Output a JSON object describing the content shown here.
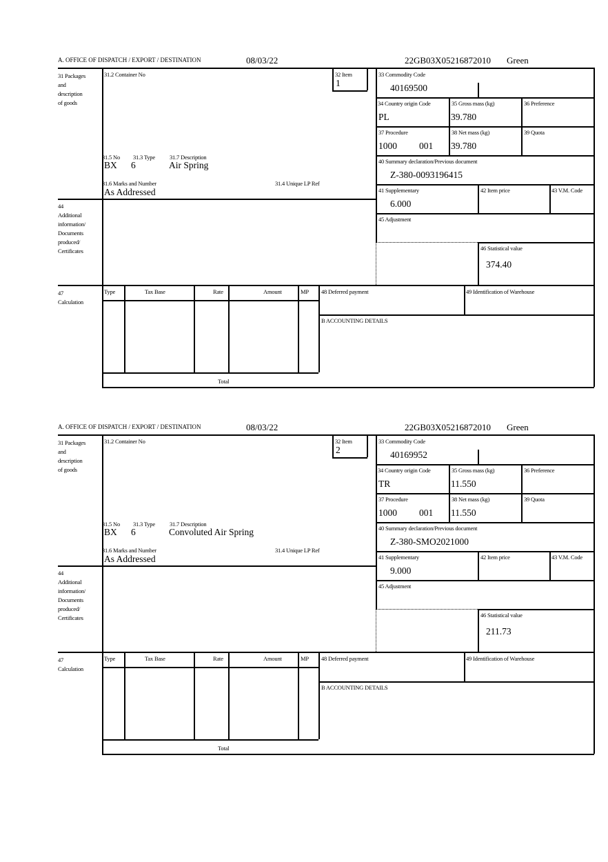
{
  "labels": {
    "office": "A.  OFFICE OF DISPATCH / EXPORT / DESTINATION",
    "packages": "31 Packages\nand\ndescription\nof goods",
    "container": "31.2 Container No",
    "item": "32 Item",
    "commodity": "33 Commodity Code",
    "origin": "34 Country origin Code",
    "gross": "35 Gross mass (kg)",
    "preference": "36 Preference",
    "procedure": "37 Procedure",
    "net": "38 Net mass (kg)",
    "quota": "39 Quota",
    "summary": "40 Summary declaration/Previous document",
    "supplementary": "41 Supplementary",
    "item_price": "42 Item price",
    "vm_code": "43 V.M. Code",
    "adjustment": "45 Adjustment",
    "statistical": "46 Statistical value",
    "no": "31.5 No",
    "type": "31.3 Type",
    "description": "31.7 Description",
    "marks": "31.6 Marks and Number",
    "unique_ref": "31.4 Unique LP Ref",
    "additional": "44\nAdditional\ninformation/\nDocuments\nproduced/\nCertificates",
    "calculation": "47\nCalculation",
    "col_type": "Type",
    "col_tax_base": "Tax Base",
    "col_rate": "Rate",
    "col_amount": "Amount",
    "col_mp": "MP",
    "deferred": "48 Deferred payment",
    "warehouse": "49 Identification of Warehouse",
    "accounting": "B ACCOUNTING DETAILS",
    "total": "Total"
  },
  "forms": [
    {
      "date": "08/03/22",
      "reference": "22GB03X05216872010",
      "route": "Green",
      "item": "1",
      "commodity_code": "40169500",
      "origin": "PL",
      "gross_mass": "39.780",
      "procedure": "1000",
      "procedure_add": "001",
      "net_mass": "39.780",
      "summary_doc": "Z-380-0093196415",
      "package_type": "BX",
      "package_no": "6",
      "description": "Air Spring",
      "marks": "As Addressed",
      "supplementary": "6.000",
      "statistical_value": "374.40"
    },
    {
      "date": "08/03/22",
      "reference": "22GB03X05216872010",
      "route": "Green",
      "item": "2",
      "commodity_code": "40169952",
      "origin": "TR",
      "gross_mass": "11.550",
      "procedure": "1000",
      "procedure_add": "001",
      "net_mass": "11.550",
      "summary_doc": "Z-380-SMO2021000",
      "package_type": "BX",
      "package_no": "6",
      "description": "Convoluted Air Spring",
      "marks": "As Addressed",
      "supplementary": "9.000",
      "statistical_value": "211.73"
    }
  ]
}
